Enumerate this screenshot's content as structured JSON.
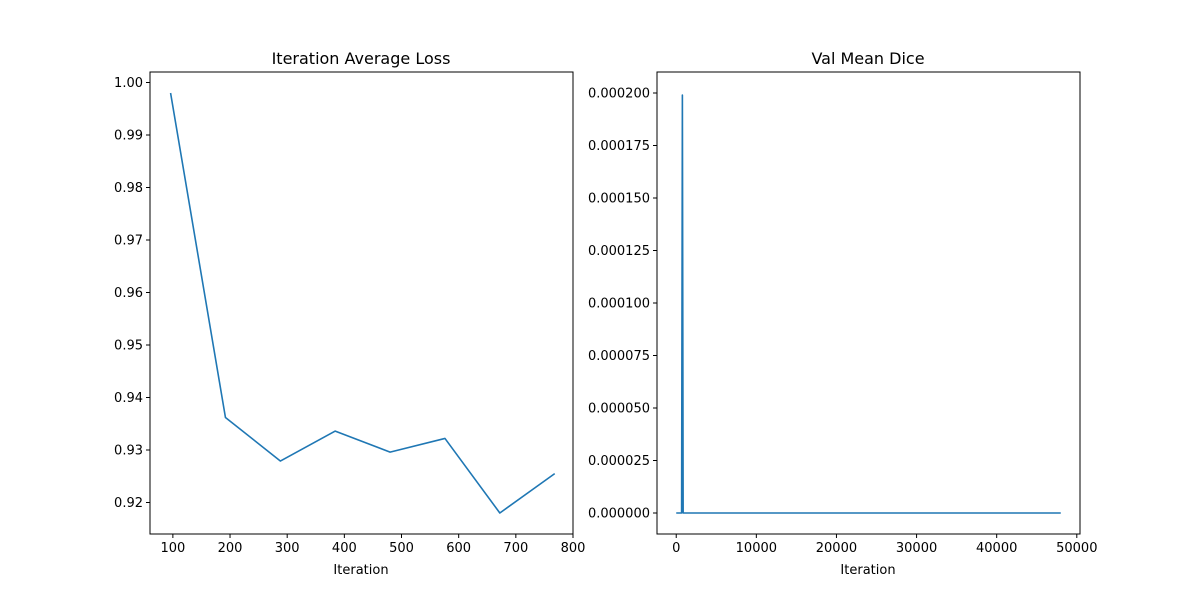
{
  "chart_data": [
    {
      "type": "line",
      "title": "Iteration Average Loss",
      "xlabel": "Iteration",
      "ylabel": "",
      "xlim": [
        60,
        800
      ],
      "ylim": [
        0.914,
        1.002
      ],
      "xticks": [
        100,
        200,
        300,
        400,
        500,
        600,
        700,
        800
      ],
      "yticks": [
        0.92,
        0.93,
        0.94,
        0.95,
        0.96,
        0.97,
        0.98,
        0.99,
        1.0
      ],
      "xtick_labels": [
        "100",
        "200",
        "300",
        "400",
        "500",
        "600",
        "700",
        "800"
      ],
      "ytick_labels": [
        "0.92",
        "0.93",
        "0.94",
        "0.95",
        "0.96",
        "0.97",
        "0.98",
        "0.99",
        "1.00"
      ],
      "grid": false,
      "color": "#1f77b4",
      "series": [
        {
          "x": [
            96,
            192,
            288,
            384,
            480,
            576,
            672,
            768
          ],
          "y": [
            0.998,
            0.9362,
            0.9279,
            0.9336,
            0.9296,
            0.9322,
            0.918,
            0.9255
          ]
        }
      ]
    },
    {
      "type": "line",
      "title": "Val Mean Dice",
      "xlabel": "Iteration",
      "ylabel": "",
      "xlim": [
        -2400,
        50400
      ],
      "ylim": [
        -1e-05,
        0.00021
      ],
      "xticks": [
        0,
        10000,
        20000,
        30000,
        40000,
        50000
      ],
      "yticks": [
        0,
        2.5e-05,
        5e-05,
        7.5e-05,
        0.0001,
        0.000125,
        0.00015,
        0.000175,
        0.0002
      ],
      "xtick_labels": [
        "0",
        "10000",
        "20000",
        "30000",
        "40000",
        "50000"
      ],
      "ytick_labels": [
        "0.000000",
        "0.000025",
        "0.000050",
        "0.000075",
        "0.000100",
        "0.000125",
        "0.000150",
        "0.000175",
        "0.000200"
      ],
      "grid": false,
      "color": "#1f77b4",
      "series": [
        {
          "x": [
            0,
            480,
            576,
            672,
            768,
            864,
            960,
            48000
          ],
          "y": [
            0,
            0,
            0,
            0,
            0.000199,
            0,
            0,
            0
          ]
        }
      ]
    }
  ]
}
